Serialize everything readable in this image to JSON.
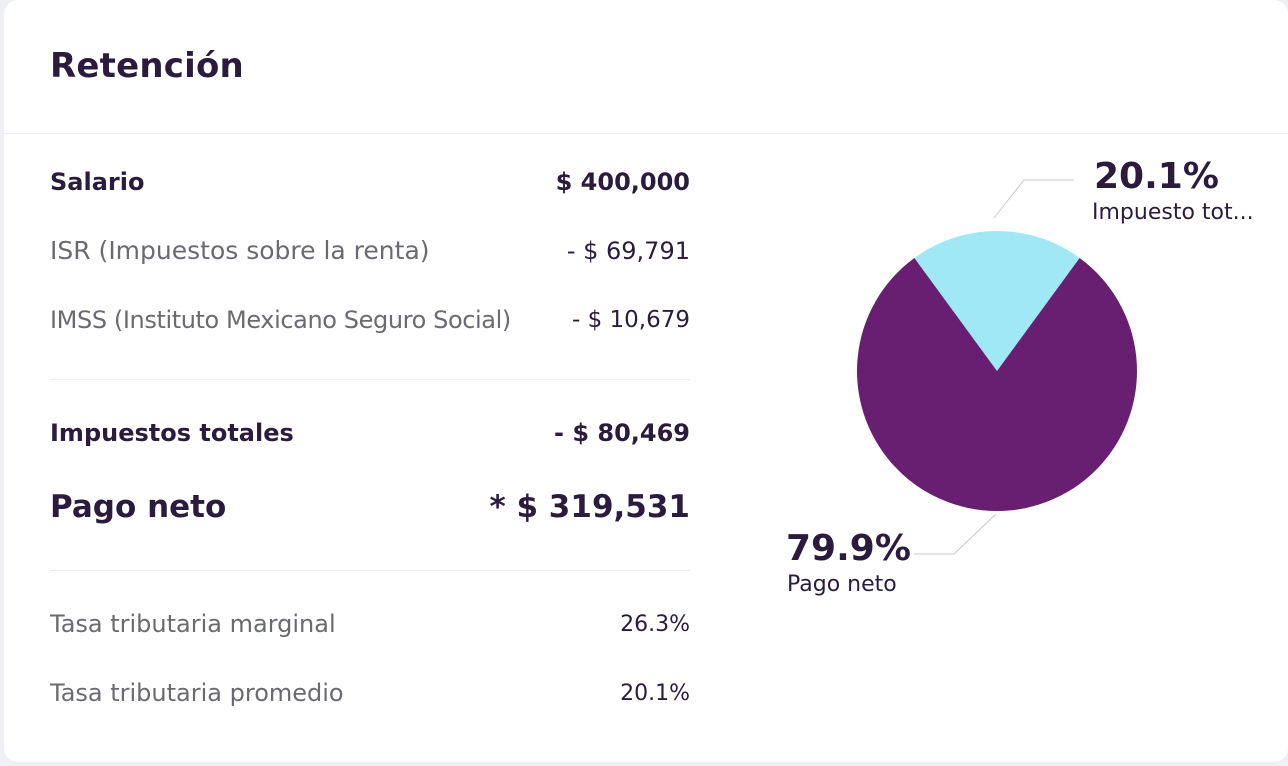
{
  "card": {
    "title": "Retención"
  },
  "breakdown": {
    "salary": {
      "label": "Salario",
      "value": "$ 400,000"
    },
    "isr": {
      "label": "ISR (Impuestos sobre la renta)",
      "value": "- $ 69,791"
    },
    "imss": {
      "label": "IMSS (Instituto Mexicano Seguro Social)",
      "value": "- $ 10,679"
    },
    "total_taxes": {
      "label": "Impuestos totales",
      "value": "- $ 80,469"
    },
    "net_pay": {
      "label": "Pago neto",
      "value": "* $ 319,531"
    },
    "marginal_rate": {
      "label": "Tasa tributaria marginal",
      "value": "26.3%"
    },
    "average_rate": {
      "label": "Tasa tributaria promedio",
      "value": "20.1%"
    }
  },
  "chart_data": {
    "type": "pie",
    "slices": [
      {
        "label": "Impuesto tot...",
        "value": 20.1,
        "display": "20.1%",
        "color": "#a0e8f6"
      },
      {
        "label": "Pago neto",
        "value": 79.9,
        "display": "79.9%",
        "color": "#681f71"
      }
    ]
  },
  "colors": {
    "text_dark": "#2b1b3d",
    "text_muted": "#6a6a72",
    "divider": "#ececf1",
    "leader_line": "#c8c8cc"
  }
}
